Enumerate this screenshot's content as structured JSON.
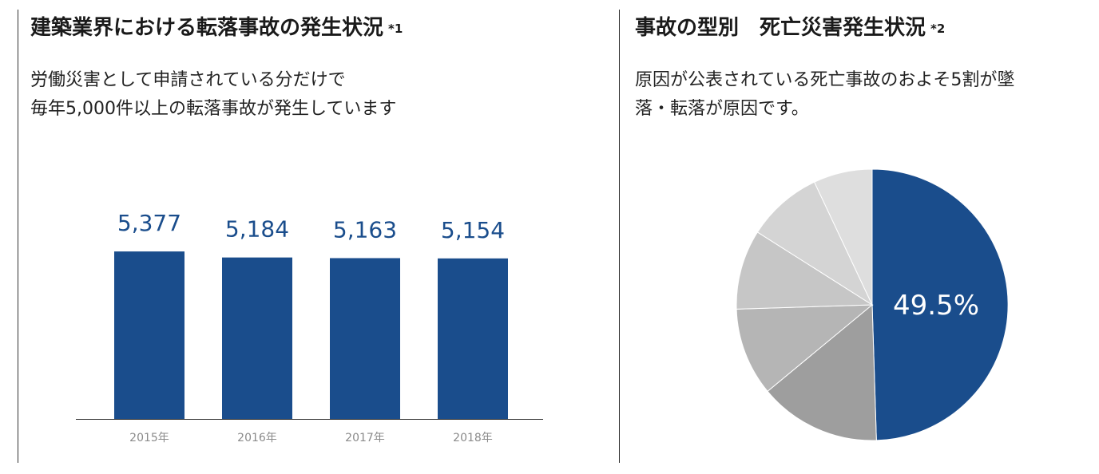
{
  "left": {
    "title": "建築業界における転落事故の発生状況",
    "note": "*1",
    "subtitle_line1": "労働災害として申請されている分だけで",
    "subtitle_line2": "毎年5,000件以上の転落事故が発生しています"
  },
  "right": {
    "title": "事故の型別　死亡災害発生状況",
    "note": "*2",
    "subtitle_line1": "原因が公表されている死亡事故のおよそ5割が墜",
    "subtitle_line2": "落・転落が原因です。"
  },
  "chart_data": [
    {
      "type": "bar",
      "categories": [
        "2015年",
        "2016年",
        "2017年",
        "2018年"
      ],
      "values": [
        5377,
        5184,
        5163,
        5154
      ],
      "value_labels": [
        "5,377",
        "5,184",
        "5,163",
        "5,154"
      ],
      "ylim": [
        0,
        6200
      ],
      "grid": false,
      "color": "#1a4d8c"
    },
    {
      "type": "pie",
      "slices": [
        {
          "value": 49.5,
          "color": "#1a4d8c"
        },
        {
          "value": 14.5,
          "color": "#9e9e9e"
        },
        {
          "value": 10.5,
          "color": "#b5b5b5"
        },
        {
          "value": 9.5,
          "color": "#c6c6c6"
        },
        {
          "value": 9.0,
          "color": "#d4d4d4"
        },
        {
          "value": 7.0,
          "color": "#dedede"
        }
      ],
      "label_text": "49.5%"
    }
  ]
}
